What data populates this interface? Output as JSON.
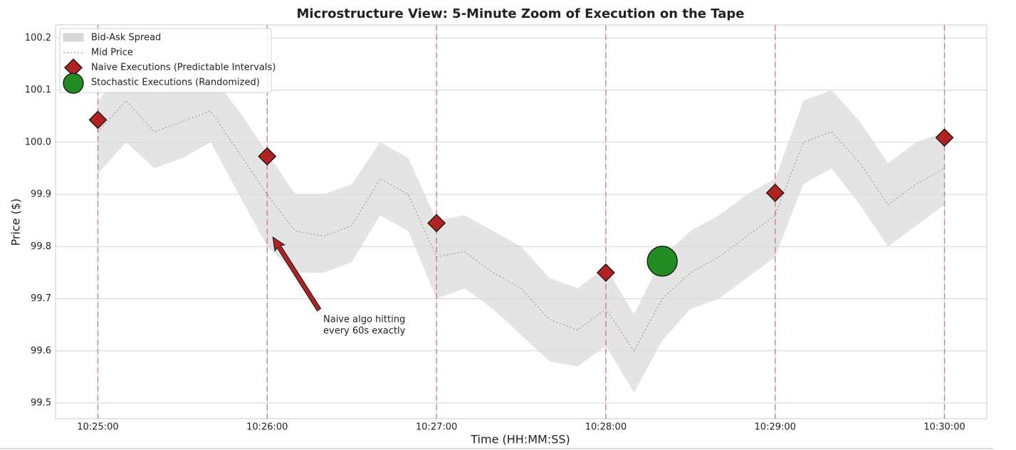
{
  "chart_data": {
    "type": "line",
    "title": "Microstructure View: 5-Minute Zoom of Execution on the Tape",
    "xlabel": "Time (HH:MM:SS)",
    "ylabel": "Price ($)",
    "x": [
      "10:25:00",
      "10:25:10",
      "10:25:20",
      "10:25:30",
      "10:25:40",
      "10:25:50",
      "10:26:00",
      "10:26:10",
      "10:26:20",
      "10:26:30",
      "10:26:40",
      "10:26:50",
      "10:27:00",
      "10:27:10",
      "10:27:20",
      "10:27:30",
      "10:27:40",
      "10:27:50",
      "10:28:00",
      "10:28:10",
      "10:28:20",
      "10:28:30",
      "10:28:40",
      "10:28:50",
      "10:29:00",
      "10:29:10",
      "10:29:20",
      "10:29:30",
      "10:29:40",
      "10:29:50",
      "10:30:00"
    ],
    "series": [
      {
        "name": "Bid-Ask Spread",
        "type": "band",
        "color": "#d9d9d9",
        "lower": [
          99.94,
          100.0,
          99.95,
          99.97,
          100.0,
          99.9,
          99.8,
          99.75,
          99.75,
          99.77,
          99.86,
          99.83,
          99.7,
          99.72,
          99.68,
          99.63,
          99.58,
          99.57,
          99.61,
          99.52,
          99.62,
          99.68,
          99.7,
          99.74,
          99.78,
          99.92,
          99.95,
          99.88,
          99.8,
          99.84,
          99.88
        ],
        "upper": [
          100.08,
          100.14,
          100.1,
          100.12,
          100.13,
          100.06,
          99.98,
          99.9,
          99.9,
          99.92,
          100.0,
          99.97,
          99.85,
          99.86,
          99.83,
          99.8,
          99.74,
          99.72,
          99.76,
          99.67,
          99.78,
          99.83,
          99.86,
          99.9,
          99.93,
          100.08,
          100.1,
          100.04,
          99.96,
          100.0,
          100.02
        ]
      },
      {
        "name": "Mid Price",
        "type": "line",
        "color": "#aaaaaa",
        "values": [
          100.02,
          100.08,
          100.02,
          100.04,
          100.06,
          99.98,
          99.9,
          99.83,
          99.82,
          99.84,
          99.93,
          99.9,
          99.78,
          99.79,
          99.75,
          99.72,
          99.66,
          99.64,
          99.68,
          99.6,
          99.7,
          99.75,
          99.78,
          99.82,
          99.86,
          100.0,
          100.02,
          99.96,
          99.88,
          99.92,
          99.95
        ]
      },
      {
        "name": "Naive Executions (Predictable Intervals)",
        "type": "scatter",
        "marker": "diamond",
        "color": "#b22222",
        "x": [
          "10:25:00",
          "10:26:00",
          "10:27:00",
          "10:28:00",
          "10:29:00",
          "10:30:00"
        ],
        "values": [
          100.043,
          99.973,
          99.845,
          99.75,
          99.903,
          100.009
        ]
      },
      {
        "name": "Stochastic Executions (Randomized)",
        "type": "scatter",
        "marker": "circle",
        "color": "#228b22",
        "x": [
          "10:28:20"
        ],
        "values": [
          99.772
        ]
      }
    ],
    "annotation": {
      "lines": [
        "Naive algo hitting",
        "every 60s exactly"
      ],
      "color": "#b22222",
      "xy": [
        "10:26:02",
        99.825
      ]
    },
    "xlim": [
      "10:24:45",
      "10:30:15"
    ],
    "xticks": [
      "10:25:00",
      "10:26:00",
      "10:27:00",
      "10:28:00",
      "10:29:00",
      "10:30:00"
    ],
    "ylim": [
      99.47,
      100.225
    ],
    "yticks": [
      99.5,
      99.6,
      99.7,
      99.8,
      99.9,
      {
        "value": 100,
        "label": "100.0"
      },
      100.1,
      100.2
    ],
    "grid": true,
    "legend": "upper left"
  }
}
